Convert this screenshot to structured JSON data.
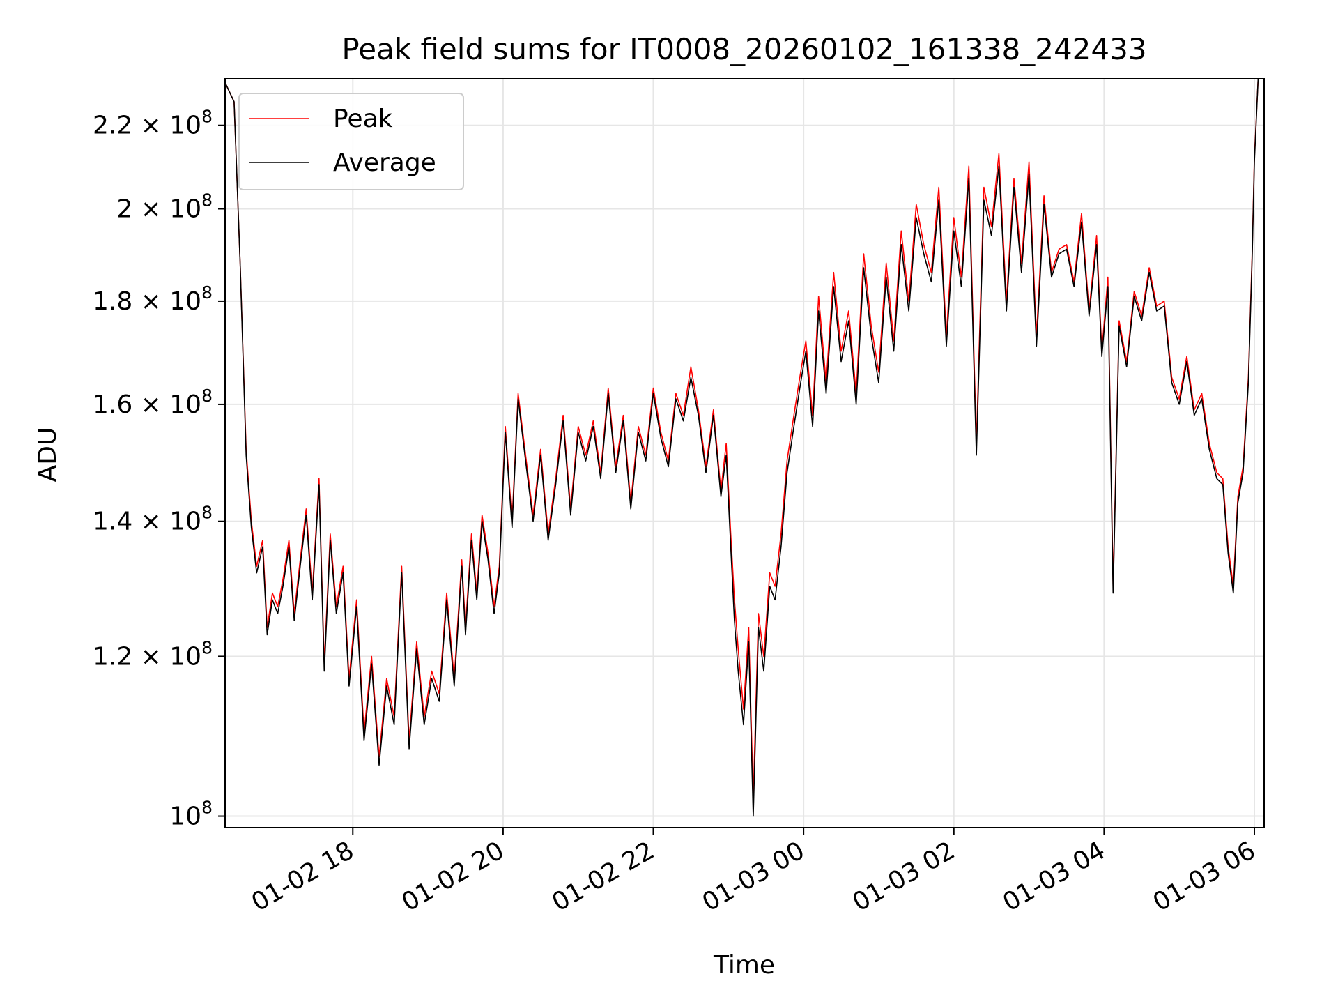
{
  "chart_data": {
    "type": "line",
    "title": "Peak field sums for IT0008_20260102_161338_242433",
    "xlabel": "Time",
    "ylabel": "ADU",
    "yscale": "log",
    "grid": true,
    "legend_position": "upper-left",
    "xlim_hours": [
      16.3,
      30.13
    ],
    "ylim": [
      98700000,
      232000000
    ],
    "xticks": [
      {
        "hour": 18,
        "label": "01-02 18"
      },
      {
        "hour": 20,
        "label": "01-02 20"
      },
      {
        "hour": 22,
        "label": "01-02 22"
      },
      {
        "hour": 24,
        "label": "01-03 00"
      },
      {
        "hour": 26,
        "label": "01-03 02"
      },
      {
        "hour": 28,
        "label": "01-03 04"
      },
      {
        "hour": 30,
        "label": "01-03 06"
      }
    ],
    "yticks": [
      {
        "value": 100000000,
        "base": "10",
        "exp": "8"
      },
      {
        "value": 120000000,
        "base": "1.2 × 10",
        "exp": "8"
      },
      {
        "value": 140000000,
        "base": "1.4 × 10",
        "exp": "8"
      },
      {
        "value": 160000000,
        "base": "1.6 × 10",
        "exp": "8"
      },
      {
        "value": 180000000,
        "base": "1.8 × 10",
        "exp": "8"
      },
      {
        "value": 200000000,
        "base": "2 × 10",
        "exp": "8"
      },
      {
        "value": 220000000,
        "base": "2.2 × 10",
        "exp": "8"
      }
    ],
    "series": [
      {
        "name": "Peak",
        "color": "#ff0000",
        "x_hours": [
          16.3,
          16.42,
          16.5,
          16.58,
          16.65,
          16.72,
          16.8,
          16.86,
          16.93,
          17.0,
          17.07,
          17.15,
          17.22,
          17.3,
          17.38,
          17.46,
          17.55,
          17.62,
          17.7,
          17.78,
          17.87,
          17.95,
          18.05,
          18.15,
          18.25,
          18.35,
          18.45,
          18.55,
          18.65,
          18.75,
          18.85,
          18.95,
          19.05,
          19.15,
          19.25,
          19.35,
          19.45,
          19.5,
          19.58,
          19.65,
          19.72,
          19.8,
          19.88,
          19.95,
          20.03,
          20.12,
          20.2,
          20.3,
          20.4,
          20.5,
          20.6,
          20.7,
          20.8,
          20.9,
          21.0,
          21.1,
          21.2,
          21.3,
          21.4,
          21.5,
          21.6,
          21.7,
          21.8,
          21.9,
          22.0,
          22.1,
          22.2,
          22.3,
          22.4,
          22.5,
          22.6,
          22.7,
          22.8,
          22.9,
          22.97,
          23.03,
          23.08,
          23.13,
          23.2,
          23.27,
          23.33,
          23.4,
          23.47,
          23.55,
          23.62,
          23.7,
          23.78,
          23.86,
          23.95,
          24.03,
          24.12,
          24.2,
          24.3,
          24.4,
          24.5,
          24.6,
          24.7,
          24.8,
          24.9,
          25.0,
          25.1,
          25.2,
          25.3,
          25.4,
          25.5,
          25.6,
          25.7,
          25.8,
          25.9,
          26.0,
          26.1,
          26.2,
          26.3,
          26.4,
          26.5,
          26.6,
          26.7,
          26.8,
          26.9,
          27.0,
          27.1,
          27.2,
          27.3,
          27.4,
          27.5,
          27.6,
          27.7,
          27.8,
          27.9,
          27.97,
          28.05,
          28.12,
          28.2,
          28.3,
          28.4,
          28.5,
          28.6,
          28.7,
          28.8,
          28.9,
          29.0,
          29.1,
          29.2,
          29.3,
          29.4,
          29.5,
          29.58,
          29.65,
          29.72,
          29.78,
          29.85,
          29.92,
          29.97,
          30.0,
          30.05
        ],
        "values": [
          231000000,
          226000000,
          188000000,
          152000000,
          140000000,
          133000000,
          137000000,
          124000000,
          129000000,
          127000000,
          131000000,
          137000000,
          126000000,
          134000000,
          142000000,
          129000000,
          147000000,
          119000000,
          138000000,
          127000000,
          133000000,
          117000000,
          128000000,
          110000000,
          120000000,
          107000000,
          117000000,
          112000000,
          133000000,
          109000000,
          122000000,
          112000000,
          118000000,
          115000000,
          129000000,
          117000000,
          134000000,
          124000000,
          138000000,
          129000000,
          141000000,
          135000000,
          127000000,
          133000000,
          156000000,
          140000000,
          162000000,
          151000000,
          141000000,
          152000000,
          138000000,
          147000000,
          158000000,
          142000000,
          156000000,
          151000000,
          157000000,
          148000000,
          163000000,
          149000000,
          158000000,
          143000000,
          156000000,
          151000000,
          163000000,
          155000000,
          150000000,
          162000000,
          158000000,
          167000000,
          159000000,
          149000000,
          159000000,
          145000000,
          153000000,
          138000000,
          128000000,
          121000000,
          113000000,
          124000000,
          102000000,
          126000000,
          120000000,
          132000000,
          130000000,
          138000000,
          150000000,
          157000000,
          165000000,
          172000000,
          158000000,
          181000000,
          164000000,
          186000000,
          170000000,
          178000000,
          162000000,
          190000000,
          175000000,
          166000000,
          188000000,
          172000000,
          195000000,
          180000000,
          201000000,
          192000000,
          186000000,
          205000000,
          173000000,
          198000000,
          185000000,
          210000000,
          153000000,
          205000000,
          196000000,
          213000000,
          180000000,
          207000000,
          188000000,
          211000000,
          173000000,
          203000000,
          186000000,
          191000000,
          192000000,
          184000000,
          199000000,
          178000000,
          194000000,
          170000000,
          185000000,
          130000000,
          176000000,
          168000000,
          182000000,
          177000000,
          187000000,
          179000000,
          180000000,
          165000000,
          161000000,
          169000000,
          159000000,
          162000000,
          153000000,
          148000000,
          147000000,
          136000000,
          130000000,
          144000000,
          149000000,
          165000000,
          190000000,
          212000000,
          232000000
        ]
      },
      {
        "name": "Average",
        "color": "#000000",
        "x_hours": [
          16.3,
          16.42,
          16.5,
          16.58,
          16.65,
          16.72,
          16.8,
          16.86,
          16.93,
          17.0,
          17.07,
          17.15,
          17.22,
          17.3,
          17.38,
          17.46,
          17.55,
          17.62,
          17.7,
          17.78,
          17.87,
          17.95,
          18.05,
          18.15,
          18.25,
          18.35,
          18.45,
          18.55,
          18.65,
          18.75,
          18.85,
          18.95,
          19.05,
          19.15,
          19.25,
          19.35,
          19.45,
          19.5,
          19.58,
          19.65,
          19.72,
          19.8,
          19.88,
          19.95,
          20.03,
          20.12,
          20.2,
          20.3,
          20.4,
          20.5,
          20.6,
          20.7,
          20.8,
          20.9,
          21.0,
          21.1,
          21.2,
          21.3,
          21.4,
          21.5,
          21.6,
          21.7,
          21.8,
          21.9,
          22.0,
          22.1,
          22.2,
          22.3,
          22.4,
          22.5,
          22.6,
          22.7,
          22.8,
          22.9,
          22.97,
          23.03,
          23.08,
          23.13,
          23.2,
          23.27,
          23.33,
          23.4,
          23.47,
          23.55,
          23.62,
          23.7,
          23.78,
          23.86,
          23.95,
          24.03,
          24.12,
          24.2,
          24.3,
          24.4,
          24.5,
          24.6,
          24.7,
          24.8,
          24.9,
          25.0,
          25.1,
          25.2,
          25.3,
          25.4,
          25.5,
          25.6,
          25.7,
          25.8,
          25.9,
          26.0,
          26.1,
          26.2,
          26.3,
          26.4,
          26.5,
          26.6,
          26.7,
          26.8,
          26.9,
          27.0,
          27.1,
          27.2,
          27.3,
          27.4,
          27.5,
          27.6,
          27.7,
          27.8,
          27.9,
          27.97,
          28.05,
          28.12,
          28.2,
          28.3,
          28.4,
          28.5,
          28.6,
          28.7,
          28.8,
          28.9,
          29.0,
          29.1,
          29.2,
          29.3,
          29.4,
          29.5,
          29.58,
          29.65,
          29.72,
          29.78,
          29.85,
          29.92,
          29.97,
          30.0,
          30.05
        ],
        "values": [
          231000000,
          226000000,
          188000000,
          151000000,
          139000000,
          132000000,
          136000000,
          123000000,
          128000000,
          126000000,
          130000000,
          136000000,
          125000000,
          133000000,
          141000000,
          128000000,
          146000000,
          118000000,
          137000000,
          126000000,
          132000000,
          116000000,
          127000000,
          109000000,
          119000000,
          106000000,
          116000000,
          111000000,
          132000000,
          108000000,
          121000000,
          111000000,
          117000000,
          114000000,
          128000000,
          116000000,
          133000000,
          123000000,
          137000000,
          128000000,
          140000000,
          134000000,
          126000000,
          132000000,
          155000000,
          139000000,
          161000000,
          150000000,
          140000000,
          151000000,
          137000000,
          146000000,
          157000000,
          141000000,
          155000000,
          150000000,
          156000000,
          147000000,
          162000000,
          148000000,
          157000000,
          142000000,
          155000000,
          150000000,
          162000000,
          154000000,
          149000000,
          161000000,
          157000000,
          165000000,
          158000000,
          148000000,
          158000000,
          144000000,
          151000000,
          136000000,
          125000000,
          118000000,
          111000000,
          122000000,
          100000000,
          124000000,
          118000000,
          130000000,
          128000000,
          136000000,
          148000000,
          155000000,
          163000000,
          170000000,
          156000000,
          178000000,
          162000000,
          183000000,
          168000000,
          176000000,
          160000000,
          187000000,
          173000000,
          164000000,
          185000000,
          170000000,
          192000000,
          178000000,
          198000000,
          190000000,
          184000000,
          202000000,
          171000000,
          195000000,
          183000000,
          207000000,
          151000000,
          202000000,
          194000000,
          210000000,
          178000000,
          205000000,
          186000000,
          208000000,
          171000000,
          201000000,
          185000000,
          190000000,
          191000000,
          183000000,
          197000000,
          177000000,
          192000000,
          169000000,
          183000000,
          129000000,
          175000000,
          167000000,
          181000000,
          176000000,
          186000000,
          178000000,
          179000000,
          164000000,
          160000000,
          168000000,
          158000000,
          161000000,
          152000000,
          147000000,
          146000000,
          135000000,
          129000000,
          143000000,
          148000000,
          164000000,
          189000000,
          211000000,
          232000000
        ]
      }
    ]
  }
}
